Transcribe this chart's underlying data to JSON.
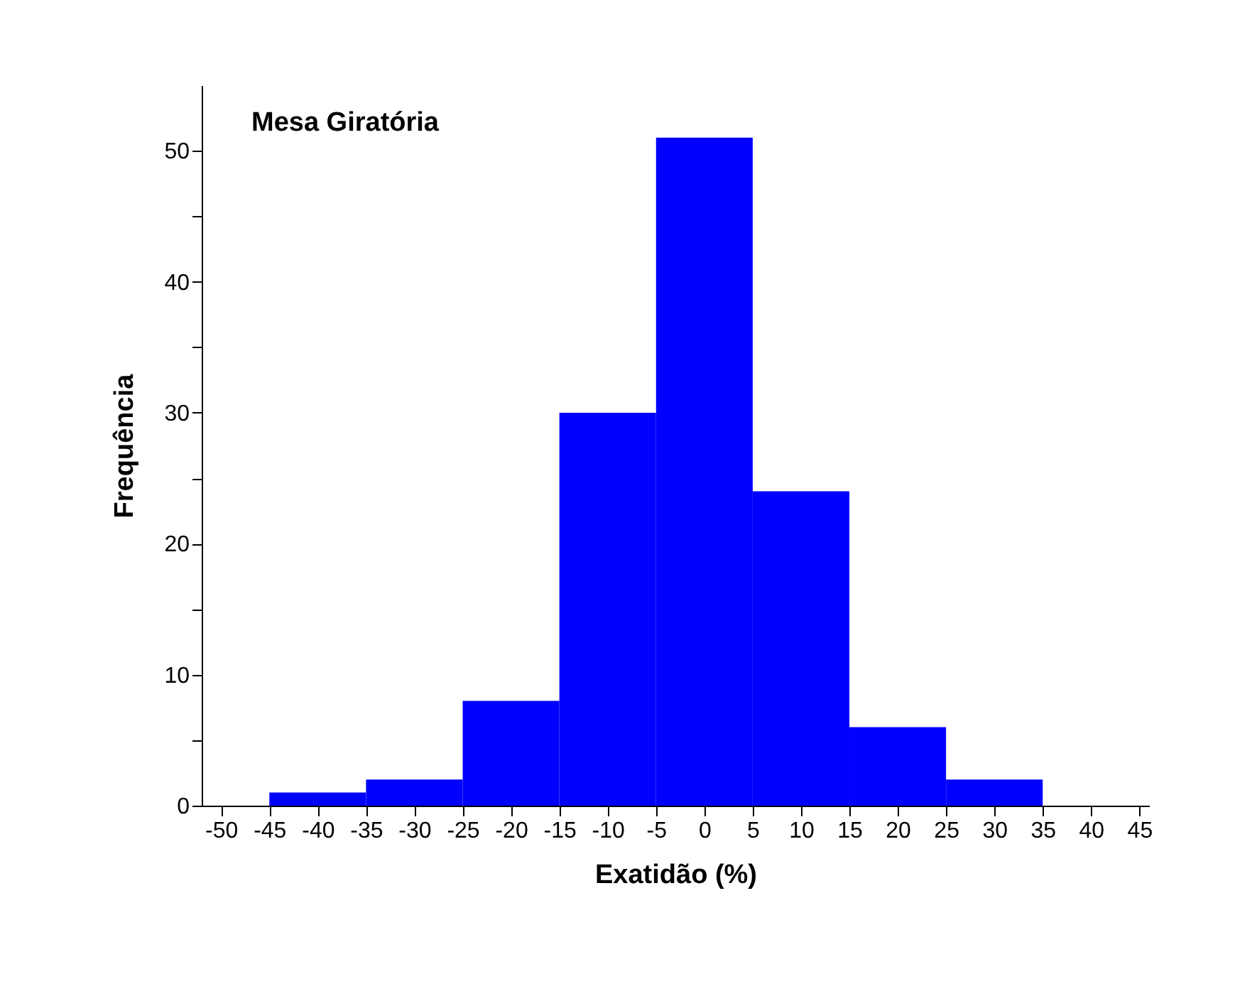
{
  "chart_data": {
    "type": "histogram",
    "title": "Mesa Giratória",
    "xlabel": "Exatidão (%)",
    "ylabel": "Frequência",
    "bins": [
      -45,
      -35,
      -25,
      -15,
      -5,
      5,
      15,
      25,
      35
    ],
    "values": [
      1,
      2,
      8,
      30,
      51,
      24,
      6,
      2
    ],
    "color": "#0000ff",
    "xlim": [
      -52,
      46
    ],
    "xticks": [
      -50,
      -45,
      -40,
      -35,
      -30,
      -25,
      -20,
      -15,
      -10,
      -5,
      0,
      5,
      10,
      15,
      20,
      25,
      30,
      35,
      40,
      45
    ],
    "ylim": [
      0,
      55
    ],
    "yticks": [
      0,
      {
        "value": 5,
        "label": null
      },
      10,
      {
        "value": 15,
        "label": null
      },
      20,
      {
        "value": 25,
        "label": null
      },
      30,
      {
        "value": 35,
        "label": null
      },
      40,
      {
        "value": 45,
        "label": null
      },
      50
    ],
    "grid": false
  }
}
